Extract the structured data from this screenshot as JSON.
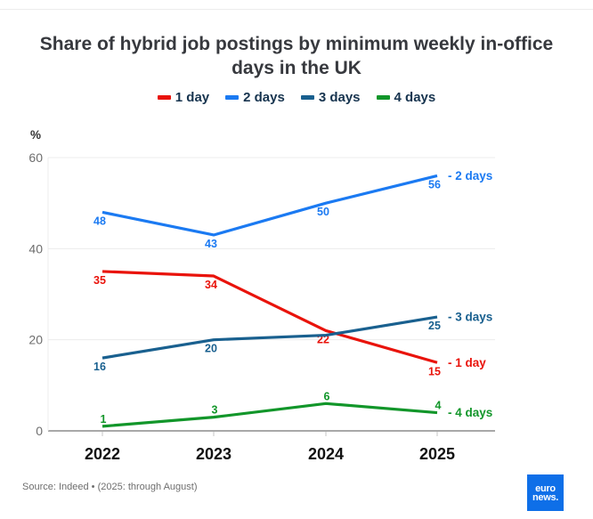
{
  "chart_data": {
    "type": "line",
    "title": "Share of hybrid job postings by minimum weekly in-office days in the UK",
    "ylabel": "%",
    "xlabel": "",
    "x": [
      "2022",
      "2023",
      "2024",
      "2025"
    ],
    "ylim": [
      0,
      60
    ],
    "yticks": [
      0,
      20,
      40,
      60
    ],
    "grid": "horizontal",
    "legend_position": "top",
    "series": [
      {
        "name": "1 day",
        "color": "#e9130b",
        "values": [
          35,
          34,
          22,
          15
        ],
        "point_labels": [
          "35",
          "34",
          "22",
          "15"
        ],
        "end_label": "- 1 day",
        "label_side": "below"
      },
      {
        "name": "2 days",
        "color": "#1b7af2",
        "values": [
          48,
          43,
          50,
          56
        ],
        "point_labels": [
          "48",
          "43",
          "50",
          "56"
        ],
        "end_label": "- 2 days",
        "label_side": "below"
      },
      {
        "name": "3 days",
        "color": "#19608f",
        "values": [
          16,
          20,
          21,
          25
        ],
        "point_labels": [
          "16",
          "20",
          "",
          "25"
        ],
        "end_label": "- 3 days",
        "label_side": "below"
      },
      {
        "name": "4 days",
        "color": "#12962a",
        "values": [
          1,
          3,
          6,
          4
        ],
        "point_labels": [
          "1",
          "3",
          "6",
          "4"
        ],
        "end_label": "- 4 days",
        "label_side": "above"
      }
    ]
  },
  "footer": {
    "source": "Source: Indeed • (2025: through August)",
    "logo": {
      "line1": "euro",
      "line2": "news."
    },
    "logo_color": "#0e6fe8"
  },
  "style": {
    "axis_color": "#a8a8a8",
    "grid_color": "#ececec",
    "tick_label_color": "#6e6e6e",
    "year_label_color": "#111111",
    "title_color": "#37393e",
    "legend_text_color": "#17344f"
  }
}
